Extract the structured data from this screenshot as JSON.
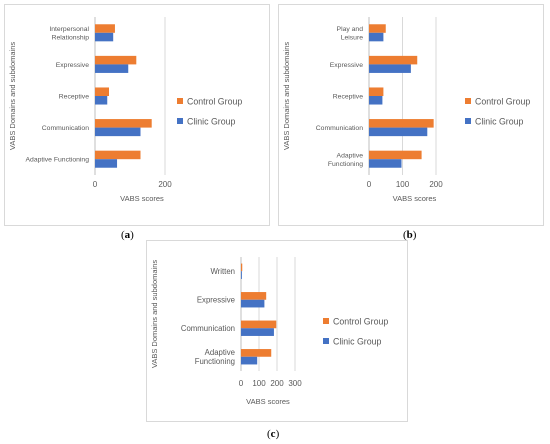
{
  "colors": {
    "control": "#ED7D31",
    "clinic": "#4472C4",
    "grid": "#d9d9d9",
    "text": "#595959"
  },
  "captions": {
    "a": "a",
    "b": "b",
    "c": "c"
  },
  "chart_data": [
    {
      "id": "a",
      "type": "bar",
      "orientation": "horizontal",
      "categories": [
        "Adaptive Functioning",
        "Communication",
        "Receptive",
        "Expressive",
        "Interpersonal Relationship"
      ],
      "series": [
        {
          "name": "Control Group",
          "values": [
            130,
            162,
            40,
            118,
            57
          ]
        },
        {
          "name": "Clinic Group",
          "values": [
            63,
            130,
            35,
            95,
            52
          ]
        }
      ],
      "xlabel": "VABS scores",
      "ylabel": "VABS Domains and subdomains",
      "xlim": [
        0,
        200
      ],
      "xticks": [
        0,
        200
      ],
      "legend": "right",
      "grid": true
    },
    {
      "id": "b",
      "type": "bar",
      "orientation": "horizontal",
      "categories": [
        "Adaptive Functioning",
        "Communication",
        "Receptive",
        "Expressive",
        "Play and Leisure"
      ],
      "series": [
        {
          "name": "Control Group",
          "values": [
            157,
            193,
            43,
            144,
            50
          ]
        },
        {
          "name": "Clinic Group",
          "values": [
            97,
            174,
            40,
            125,
            43
          ]
        }
      ],
      "xlabel": "VABS scores",
      "ylabel": "VABS Domains and subdomains",
      "xlim": [
        0,
        200
      ],
      "xticks": [
        0,
        100,
        200
      ],
      "legend": "right",
      "grid": true
    },
    {
      "id": "c",
      "type": "bar",
      "orientation": "horizontal",
      "categories": [
        "Adaptive Functioning",
        "Communication",
        "Expressive",
        "Written"
      ],
      "series": [
        {
          "name": "Control Group",
          "values": [
            168,
            196,
            140,
            7
          ]
        },
        {
          "name": "Clinic Group",
          "values": [
            90,
            183,
            130,
            5
          ]
        }
      ],
      "xlabel": "VABS scores",
      "ylabel": "VABS Domains and subdomains",
      "xlim": [
        0,
        300
      ],
      "xticks": [
        0,
        100,
        200,
        300
      ],
      "legend": "right",
      "grid": true
    }
  ]
}
